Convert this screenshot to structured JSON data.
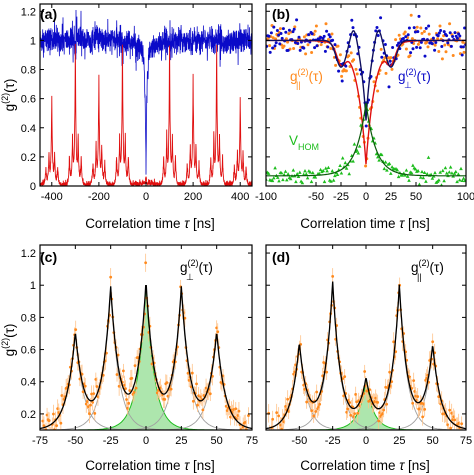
{
  "figure": {
    "panels": [
      {
        "tag": "(a)"
      },
      {
        "tag": "(b)"
      },
      {
        "tag": "(c)"
      },
      {
        "tag": "(d)"
      }
    ],
    "ylabel_main": "g",
    "ylabel_sup": "(2)",
    "ylabel_arg": "(τ)",
    "xlabel_main": "Correlation time ",
    "xlabel_sym": "τ",
    "xlabel_unit": " [ns]",
    "annotations": {
      "b_par_main": "g",
      "b_par_sub": "||",
      "b_par_sup": "(2)",
      "b_par_arg": "(τ)",
      "b_perp_main": "g",
      "b_perp_sub": "⊥",
      "b_perp_sup": "(2)",
      "b_perp_arg": "(τ)",
      "b_hom_main": "V",
      "b_hom_sub": "HOM",
      "c_main": "g",
      "c_sub": "⊥",
      "c_sup": "(2)",
      "c_arg": "(τ)",
      "d_main": "g",
      "d_sub": "||",
      "d_sup": "(2)",
      "d_arg": "(τ)"
    },
    "colors": {
      "blue": "#0a0ac8",
      "red": "#e01010",
      "orange": "#ff8a1e",
      "green": "#1dbd1d",
      "green_fill": "#9fe29f",
      "black": "#000000",
      "gray": "#a0a0a0"
    }
  },
  "chart_data": [
    {
      "panel": "(a)",
      "type": "line",
      "xlim": [
        -450,
        450
      ],
      "ylim": [
        0,
        1.25
      ],
      "xticks": [
        "-400",
        "-200",
        "0",
        "200",
        "400"
      ],
      "yticks": [
        "0",
        "0.2",
        "0.4",
        "0.6",
        "0.8",
        "1",
        "1.2"
      ],
      "series": [
        {
          "color": "blue",
          "description_values": {
            "baseline": 1.0,
            "dip_center": 0,
            "dip_min": 0.28
          }
        },
        {
          "color": "red",
          "peak_positions": [
            -400,
            -300,
            -200,
            -100,
            0,
            100,
            200,
            300,
            400
          ],
          "peak_heights": [
            0.6,
            0.95,
            0.75,
            0.95,
            0.05,
            0.95,
            0.75,
            0.95,
            0.6
          ]
        }
      ]
    },
    {
      "panel": "(b)",
      "type": "scatter",
      "xlim": [
        -100,
        100
      ],
      "ylim": [
        0,
        1.25
      ],
      "xticks": [
        "-100",
        "-50",
        "-25",
        "0",
        "25",
        "50",
        "100"
      ],
      "yticks": [],
      "series": [
        {
          "color": "orange",
          "label": "g||(2)(τ)",
          "min_at_0": 0.15
        },
        {
          "color": "blue",
          "label": "g⊥(2)(τ)",
          "min_at_0": 0.4
        },
        {
          "color": "green",
          "label": "VHOM",
          "peak_at_0": 0.4
        }
      ]
    },
    {
      "panel": "(c)",
      "type": "scatter",
      "xlim": [
        -75,
        75
      ],
      "ylim": [
        0.1,
        1.25
      ],
      "xticks": [
        "-75",
        "-50",
        "-25",
        "0",
        "25",
        "50",
        "75"
      ],
      "yticks": [
        "0.2",
        "0.4",
        "0.6",
        "0.8",
        "1",
        "1.2"
      ],
      "peaks": [
        {
          "x": -50,
          "height": 0.7
        },
        {
          "x": -25,
          "height": 0.97
        },
        {
          "x": 0,
          "height": 1.0
        },
        {
          "x": 25,
          "height": 0.97
        },
        {
          "x": 50,
          "height": 0.7
        }
      ]
    },
    {
      "panel": "(d)",
      "type": "scatter",
      "xlim": [
        -75,
        75
      ],
      "ylim": [
        0.1,
        1.25
      ],
      "xticks": [
        "-50",
        "-25",
        "0",
        "25",
        "50",
        "75"
      ],
      "yticks": [],
      "peaks": [
        {
          "x": -50,
          "height": 0.63
        },
        {
          "x": -25,
          "height": 1.01
        },
        {
          "x": 0,
          "height": 0.4
        },
        {
          "x": 25,
          "height": 0.99
        },
        {
          "x": 50,
          "height": 0.62
        }
      ]
    }
  ]
}
